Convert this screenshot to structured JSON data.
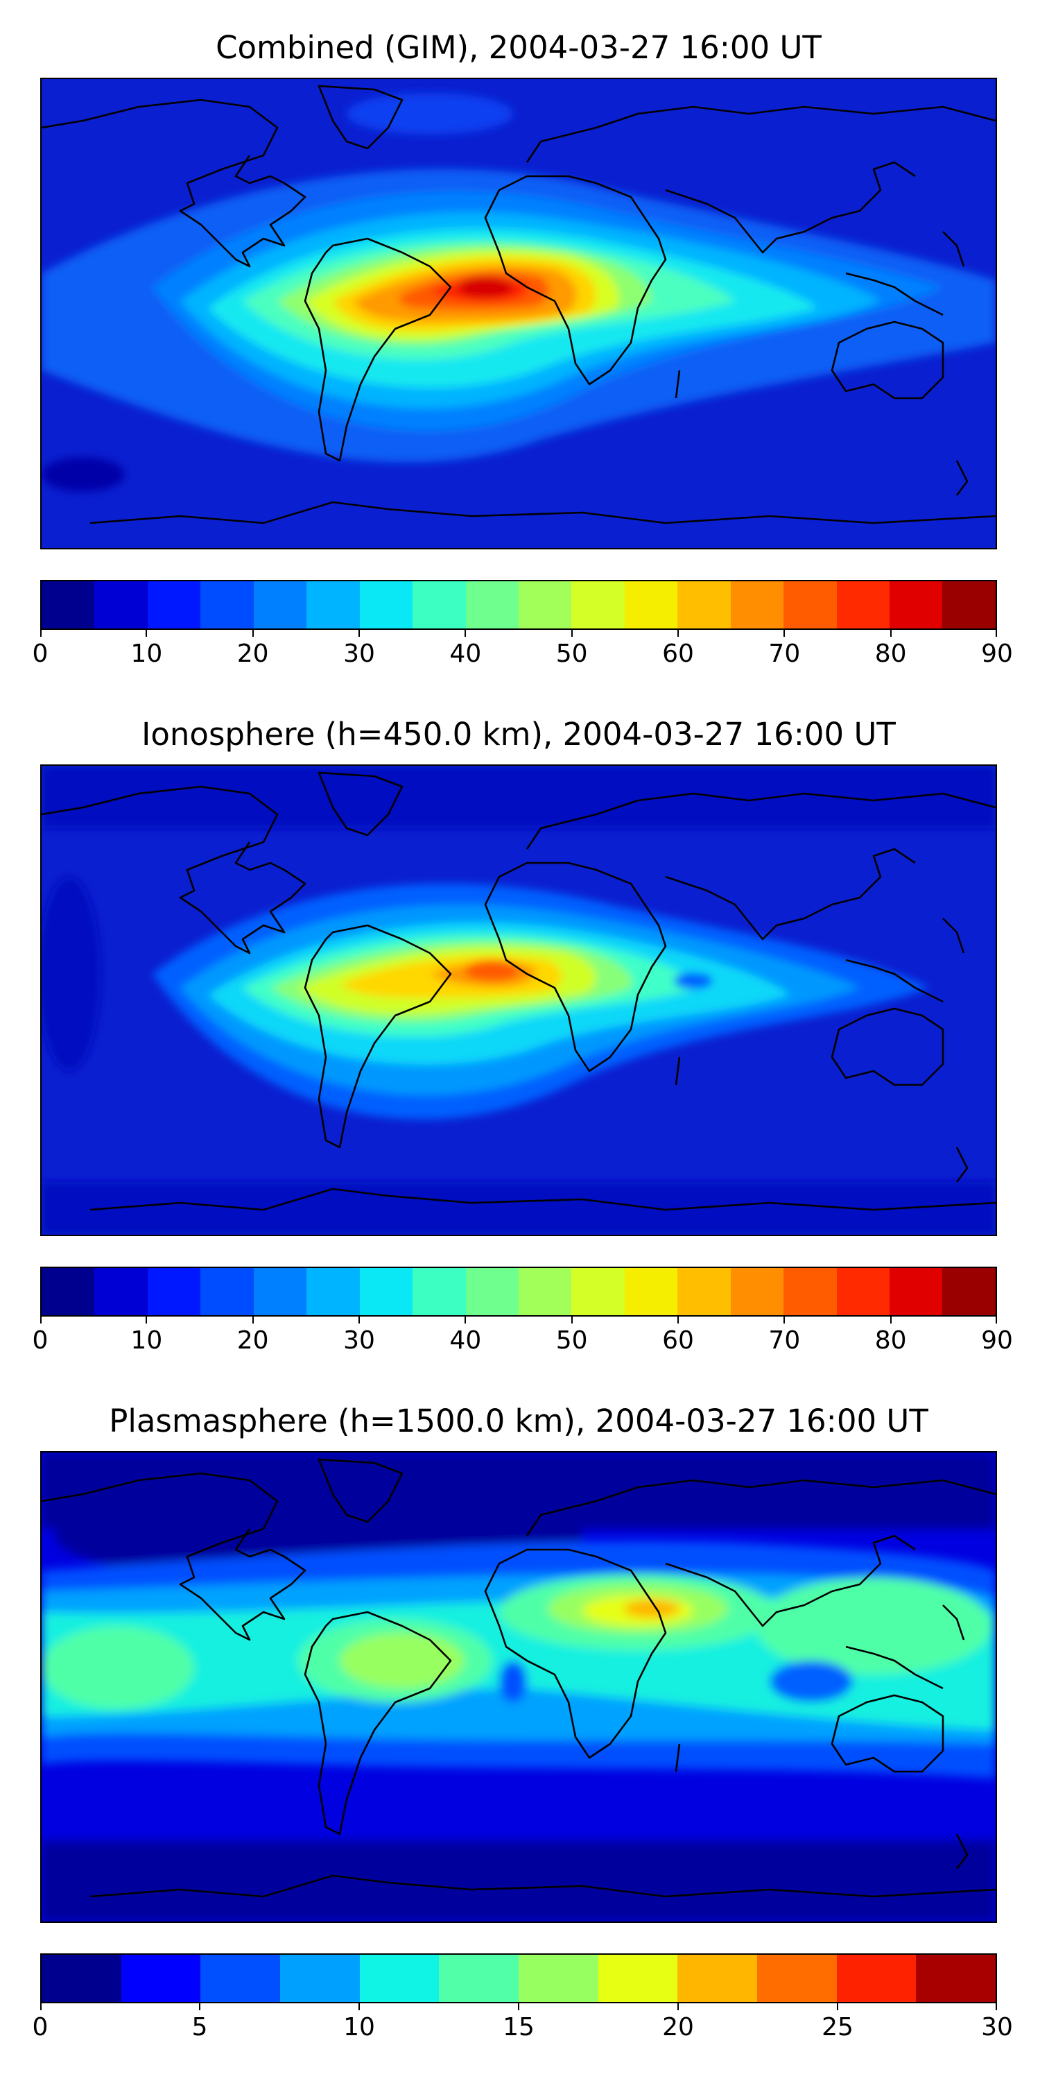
{
  "panels": [
    {
      "title": "Combined (GIM), 2004-03-27 16:00 UT",
      "colorbar": {
        "ticks": [
          "0",
          "10",
          "20",
          "30",
          "40",
          "50",
          "60",
          "70",
          "80",
          "90"
        ],
        "range": [
          0,
          90
        ],
        "colors": [
          "#00008f",
          "#0000d4",
          "#0018ff",
          "#004cff",
          "#0080ff",
          "#00b4ff",
          "#0ae8f5",
          "#3cffc2",
          "#6eff8e",
          "#a2ff5a",
          "#d4ff27",
          "#f5ee00",
          "#ffbf00",
          "#ff8e00",
          "#ff5c00",
          "#ff2a00",
          "#e00000",
          "#9a0000"
        ]
      },
      "field": {
        "base": "#0a1fd0",
        "peak_level": "80-85"
      }
    },
    {
      "title": "Ionosphere  (h=450.0 km), 2004-03-27 16:00 UT",
      "colorbar": {
        "ticks": [
          "0",
          "10",
          "20",
          "30",
          "40",
          "50",
          "60",
          "70",
          "80",
          "90"
        ],
        "range": [
          0,
          90
        ],
        "colors": [
          "#00008f",
          "#0000d4",
          "#0018ff",
          "#004cff",
          "#0080ff",
          "#00b4ff",
          "#0ae8f5",
          "#3cffc2",
          "#6eff8e",
          "#a2ff5a",
          "#d4ff27",
          "#f5ee00",
          "#ffbf00",
          "#ff8e00",
          "#ff5c00",
          "#ff2a00",
          "#e00000",
          "#9a0000"
        ]
      },
      "field": {
        "base": "#0a1fd0",
        "peak_level": "65-70"
      }
    },
    {
      "title": "Plasmasphere (h=1500.0 km), 2004-03-27 16:00 UT",
      "colorbar": {
        "ticks": [
          "0",
          "5",
          "10",
          "15",
          "20",
          "25",
          "30"
        ],
        "range": [
          0,
          30
        ],
        "colors": [
          "#00008f",
          "#0000ff",
          "#0050ff",
          "#00a0ff",
          "#10f4e6",
          "#50ffa8",
          "#98ff60",
          "#e6ff12",
          "#ffb600",
          "#ff6c00",
          "#ff2200",
          "#a80000"
        ]
      },
      "field": {
        "base": "#0a1fd0",
        "peak_level": "22.5-25"
      }
    }
  ]
}
